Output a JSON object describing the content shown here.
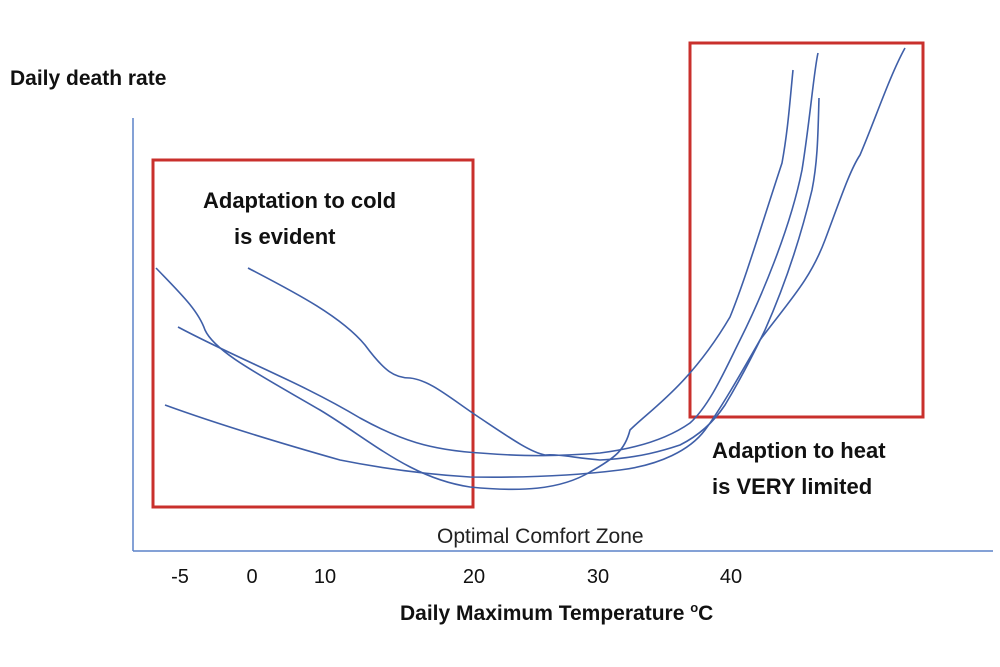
{
  "y_axis_label": "Daily death rate",
  "x_axis_label": "Daily Maximum Temperature",
  "x_axis_unit_sup": "o",
  "x_axis_unit": "C",
  "x_ticks": [
    "-5",
    "0",
    "10",
    "20",
    "30",
    "40"
  ],
  "annotations": {
    "cold_line1": "Adaptation to cold",
    "cold_line2": "is evident",
    "heat_line1": "Adaption to heat",
    "heat_line2": "is VERY limited",
    "comfort_zone": "Optimal Comfort Zone"
  },
  "colors": {
    "curves": "#3f5fa8",
    "boxes": "#c9302c",
    "axes": "#5b82c9"
  }
}
